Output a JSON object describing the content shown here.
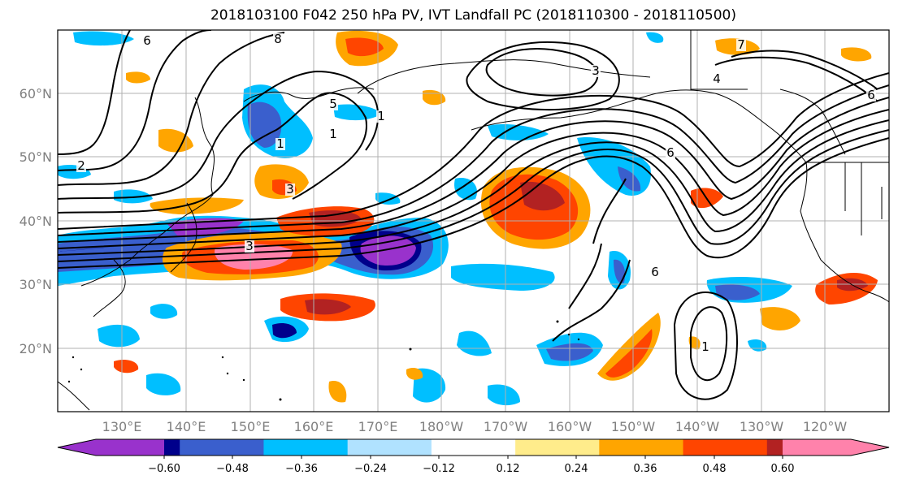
{
  "title": "2018103100 F042 250 hPa PV, IVT Landfall PC (2018110300 - 2018110500)",
  "lat_labels": [
    "60°N",
    "50°N",
    "40°N",
    "30°N",
    "20°N"
  ],
  "lon_labels": [
    "130°E",
    "140°E",
    "150°E",
    "160°E",
    "170°E",
    "180°W",
    "170°W",
    "160°W",
    "150°W",
    "140°W",
    "130°W",
    "120°W"
  ],
  "contour_labels": [
    "6",
    "8",
    "7",
    "3",
    "4",
    "6",
    "6",
    "2",
    "1",
    "5",
    "3",
    "3",
    "6",
    "1",
    "1",
    "1"
  ],
  "colorbar": {
    "colors": [
      "#9932cc",
      "#00008b",
      "#3a5fcd",
      "#00bfff",
      "#b0e2ff",
      "#ffffff",
      "#ffec8b",
      "#ffa500",
      "#ff4500",
      "#b22222",
      "#ff82ab"
    ],
    "ticks": [
      "−0.60",
      "−0.48",
      "−0.36",
      "−0.24",
      "−0.12",
      "0.12",
      "0.24",
      "0.36",
      "0.48",
      "0.60"
    ]
  }
}
